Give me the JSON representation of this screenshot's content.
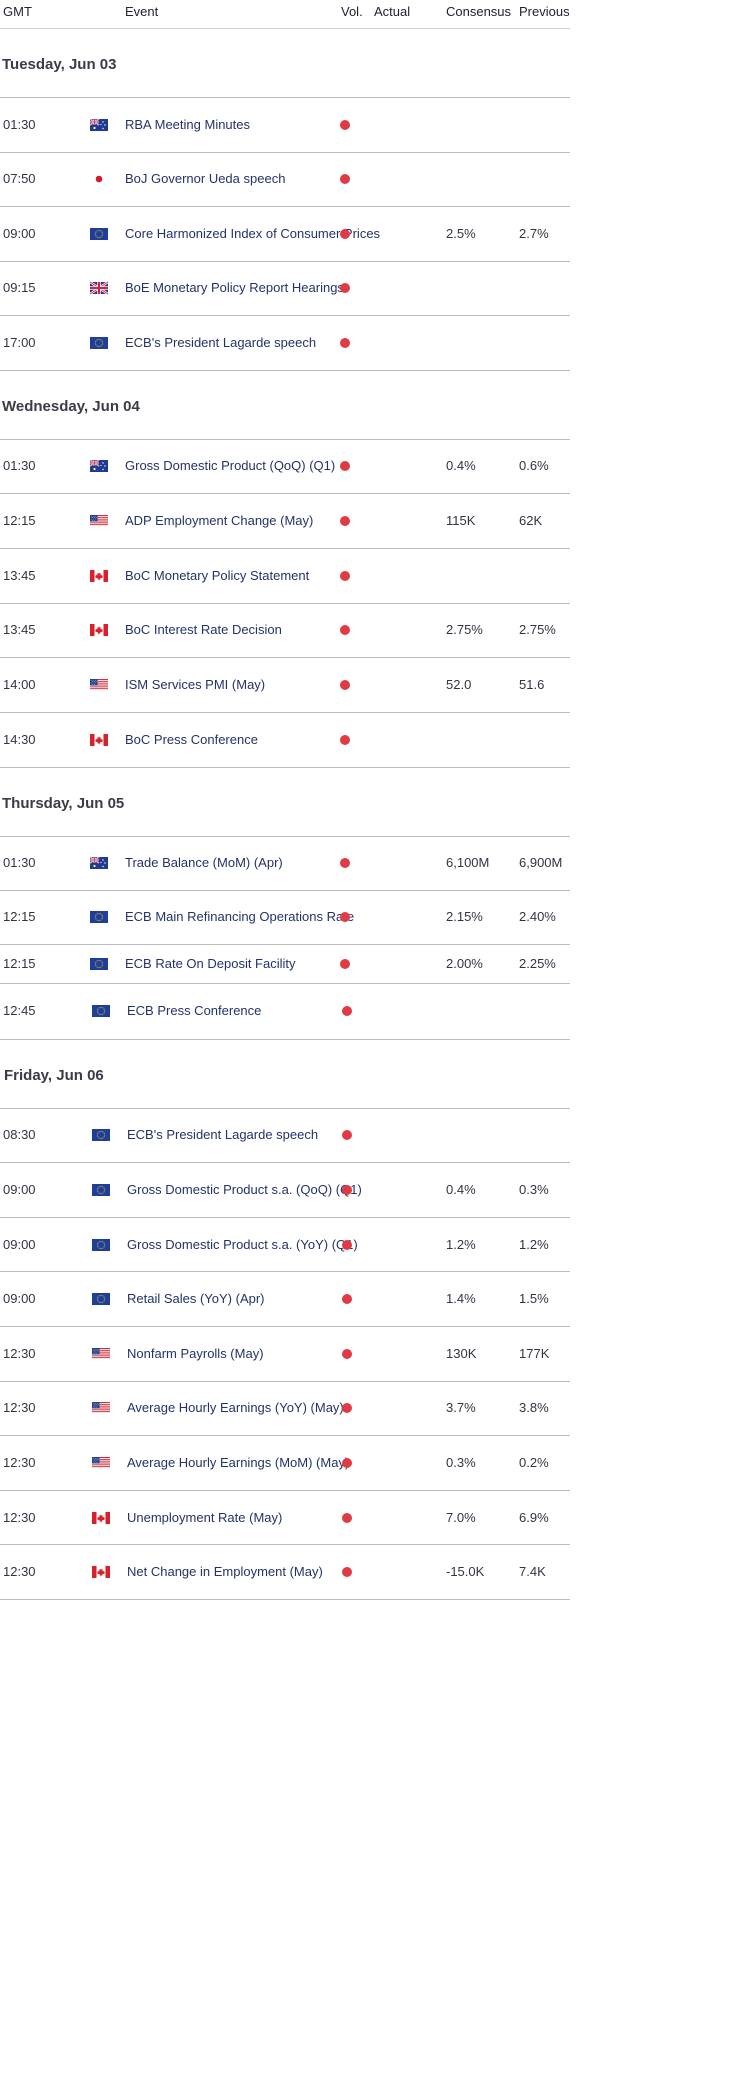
{
  "header": {
    "gmt": "GMT",
    "event": "Event",
    "vol": "Vol.",
    "actual": "Actual",
    "consensus": "Consensus",
    "previous": "Previous"
  },
  "colors": {
    "volatility_dot": "#e03a44",
    "event_text": "#22336b",
    "divider": "#bdbdbd"
  },
  "days": [
    {
      "label": "Tuesday, Jun 03",
      "events": [
        {
          "time": "01:30",
          "flag": "australia-flag-icon",
          "name": "RBA Meeting Minutes",
          "consensus": "",
          "previous": ""
        },
        {
          "time": "07:50",
          "flag": "japan-flag-icon",
          "name": "BoJ Governor Ueda speech",
          "consensus": "",
          "previous": ""
        },
        {
          "time": "09:00",
          "flag": "eu-flag-icon",
          "name": "Core Harmonized Index of Consumer Prices",
          "consensus": "2.5%",
          "previous": "2.7%"
        },
        {
          "time": "09:15",
          "flag": "uk-flag-icon",
          "name": "BoE Monetary Policy Report Hearings",
          "consensus": "",
          "previous": ""
        },
        {
          "time": "17:00",
          "flag": "eu-flag-icon",
          "name": "ECB's President Lagarde speech",
          "consensus": "",
          "previous": ""
        }
      ]
    },
    {
      "label": "Wednesday, Jun 04",
      "events": [
        {
          "time": "01:30",
          "flag": "australia-flag-icon",
          "name": "Gross Domestic Product (QoQ) (Q1)",
          "consensus": "0.4%",
          "previous": "0.6%"
        },
        {
          "time": "12:15",
          "flag": "us-flag-icon",
          "name": "ADP Employment Change (May)",
          "consensus": "115K",
          "previous": "62K"
        },
        {
          "time": "13:45",
          "flag": "canada-flag-icon",
          "name": "BoC Monetary Policy Statement",
          "consensus": "",
          "previous": ""
        },
        {
          "time": "13:45",
          "flag": "canada-flag-icon",
          "name": "BoC Interest Rate Decision",
          "consensus": "2.75%",
          "previous": "2.75%"
        },
        {
          "time": "14:00",
          "flag": "us-flag-icon",
          "name": "ISM Services PMI (May)",
          "consensus": "52.0",
          "previous": "51.6"
        },
        {
          "time": "14:30",
          "flag": "canada-flag-icon",
          "name": "BoC Press Conference",
          "consensus": "",
          "previous": ""
        }
      ]
    },
    {
      "label": "Thursday, Jun 05",
      "events": [
        {
          "time": "01:30",
          "flag": "australia-flag-icon",
          "name": "Trade Balance (MoM) (Apr)",
          "consensus": "6,100M",
          "previous": "6,900M"
        },
        {
          "time": "12:15",
          "flag": "eu-flag-icon",
          "name": "ECB Main Refinancing Operations Rate",
          "consensus": "2.15%",
          "previous": "2.40%"
        },
        {
          "time": "12:15",
          "flag": "eu-flag-icon",
          "name": "ECB Rate On Deposit Facility",
          "consensus": "2.00%",
          "previous": "2.25%"
        },
        {
          "time": "12:45",
          "flag": "eu-flag-icon",
          "name": "ECB Press Conference",
          "consensus": "",
          "previous": ""
        }
      ]
    },
    {
      "label": "Friday, Jun 06",
      "events": [
        {
          "time": "08:30",
          "flag": "eu-flag-icon",
          "name": "ECB's President Lagarde speech",
          "consensus": "",
          "previous": ""
        },
        {
          "time": "09:00",
          "flag": "eu-flag-icon",
          "name": "Gross Domestic Product s.a. (QoQ) (Q1)",
          "consensus": "0.4%",
          "previous": "0.3%"
        },
        {
          "time": "09:00",
          "flag": "eu-flag-icon",
          "name": "Gross Domestic Product s.a. (YoY) (Q1)",
          "consensus": "1.2%",
          "previous": "1.2%"
        },
        {
          "time": "09:00",
          "flag": "eu-flag-icon",
          "name": "Retail Sales (YoY) (Apr)",
          "consensus": "1.4%",
          "previous": "1.5%"
        },
        {
          "time": "12:30",
          "flag": "us-flag-icon",
          "name": "Nonfarm Payrolls (May)",
          "consensus": "130K",
          "previous": "177K"
        },
        {
          "time": "12:30",
          "flag": "us-flag-icon",
          "name": "Average Hourly Earnings (YoY) (May)",
          "consensus": "3.7%",
          "previous": "3.8%"
        },
        {
          "time": "12:30",
          "flag": "us-flag-icon",
          "name": "Average Hourly Earnings (MoM) (May)",
          "consensus": "0.3%",
          "previous": "0.2%"
        },
        {
          "time": "12:30",
          "flag": "canada-flag-icon",
          "name": "Unemployment Rate (May)",
          "consensus": "7.0%",
          "previous": "6.9%"
        },
        {
          "time": "12:30",
          "flag": "canada-flag-icon",
          "name": "Net Change in Employment (May)",
          "consensus": "-15.0K",
          "previous": "7.4K"
        }
      ]
    }
  ]
}
